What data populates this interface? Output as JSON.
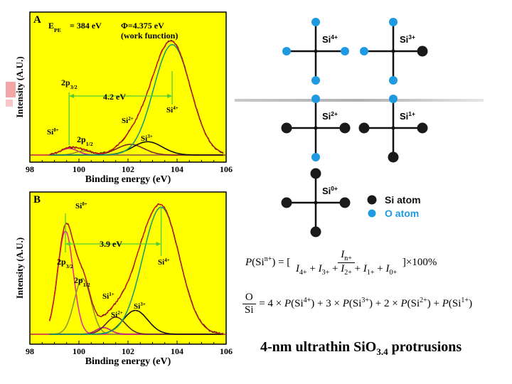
{
  "chart_data": [
    {
      "type": "line",
      "panel_label": "A",
      "xlabel": "Binding energy (eV)",
      "ylabel": "Intensity (A.U.)",
      "xlim": [
        98,
        106
      ],
      "xticks": [
        "98",
        "100",
        "102",
        "104",
        "106"
      ],
      "annotations": {
        "epe_symbol": "E",
        "epe_sub": "PE",
        "epe_value": "= 384 eV",
        "phi": "Φ=4.375 eV",
        "phi_note": "(work function)",
        "shift": "4.2 eV",
        "p32": "2p",
        "p32_sub": "3/2",
        "p12": "2p",
        "p12_sub": "1/2",
        "si0": "Si",
        "si0_sup": "0+",
        "si2": "Si",
        "si2_sup": "2+",
        "si3": "Si",
        "si3_sup": "3+",
        "si4": "Si",
        "si4_sup": "4+"
      },
      "components": [
        {
          "name": "Si0+ 2p3/2",
          "color": "#d81b8c",
          "center": 99.6,
          "amp": 0.05,
          "width": 0.35
        },
        {
          "name": "Si0+ 2p1/2",
          "color": "#9b8a2a",
          "center": 100.2,
          "amp": 0.03,
          "width": 0.35
        },
        {
          "name": "Si2+",
          "color": "#7a2a2a",
          "center": 102.1,
          "amp": 0.08,
          "width": 0.55
        },
        {
          "name": "Si3+",
          "color": "#111111",
          "center": 102.8,
          "amp": 0.1,
          "width": 0.6
        },
        {
          "name": "Si4+",
          "color": "#1e9e6e",
          "center": 103.8,
          "amp": 0.83,
          "width": 0.75
        }
      ]
    },
    {
      "type": "line",
      "panel_label": "B",
      "xlabel": "Binding energy (eV)",
      "ylabel": "Intensity (A.U.)",
      "xlim": [
        98,
        106
      ],
      "xticks": [
        "98",
        "100",
        "102",
        "104",
        "106"
      ],
      "annotations": {
        "shift": "3.9 eV",
        "p32": "2p",
        "p32_sub": "3/2",
        "p12": "2p",
        "p12_sub": "1/2",
        "si0": "Si",
        "si0_sup": "0+",
        "si1": "Si",
        "si1_sup": "1+",
        "si2": "Si",
        "si2_sup": "2+",
        "si3": "Si",
        "si3_sup": "3+",
        "si4": "Si",
        "si4_sup": "4+"
      },
      "components": [
        {
          "name": "Si0+ 2p3/2",
          "color": "#e8329a",
          "center": 99.45,
          "amp": 0.78,
          "width": 0.32
        },
        {
          "name": "Si0+ 2p1/2",
          "color": "#8c9a2a",
          "center": 100.15,
          "amp": 0.42,
          "width": 0.34
        },
        {
          "name": "Si1+",
          "color": "#c0188a",
          "center": 101.0,
          "amp": 0.05,
          "width": 0.3
        },
        {
          "name": "Si2+",
          "color": "#5a2a2a",
          "center": 101.5,
          "amp": 0.13,
          "width": 0.4
        },
        {
          "name": "Si3+",
          "color": "#111111",
          "center": 102.3,
          "amp": 0.18,
          "width": 0.5
        },
        {
          "name": "Si4+",
          "color": "#1e9e6e",
          "center": 103.35,
          "amp": 0.96,
          "width": 0.75
        }
      ]
    }
  ],
  "structures": [
    {
      "label": "Si",
      "sup": "4+",
      "left": "O",
      "right": "O",
      "top": "O",
      "bottom": "O"
    },
    {
      "label": "Si",
      "sup": "3+",
      "left": "O",
      "right": "Si",
      "top": "O",
      "bottom": "O"
    },
    {
      "label": "Si",
      "sup": "2+",
      "left": "Si",
      "right": "Si",
      "top": "O",
      "bottom": "O"
    },
    {
      "label": "Si",
      "sup": "1+",
      "left": "Si",
      "right": "Si",
      "top": "O",
      "bottom": "Si"
    },
    {
      "label": "Si",
      "sup": "0+",
      "left": "Si",
      "right": "Si",
      "top": "Si",
      "bottom": "Si"
    }
  ],
  "legend": {
    "si_atom": "Si atom",
    "o_atom": "O atom"
  },
  "colors": {
    "si_atom": "#1a1a1a",
    "o_atom": "#1e9be0",
    "plot_bg": "#ffff00",
    "envelope": "#d41a1a"
  },
  "equations": {
    "eq1_left": "P(Si",
    "eq1_left_sup": "n+",
    "eq1_eq": ") = [",
    "eq1_num": "I",
    "eq1_num_sub": "n+",
    "eq1_den": "I4+ + I3+ + I2+ + I1+ + I0+",
    "eq1_right": "]×100%",
    "eq2_num": "O",
    "eq2_den": "Si",
    "eq2_rhs": "= 4 × P(Si4+) + 3 × P(Si3+) + 2 × P(Si2+) + P(Si1+)"
  },
  "caption": {
    "main": "4-nm ultrathin SiO",
    "sub": "3.4",
    "tail": " protrusions"
  }
}
